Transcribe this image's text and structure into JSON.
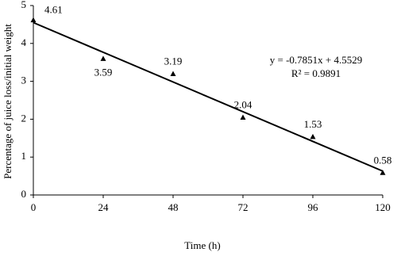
{
  "chart_data": {
    "type": "scatter",
    "x_label": "Time (h)",
    "y_label": "Percentage of juice loss/initial weight",
    "x": [
      0,
      24,
      48,
      72,
      96,
      120
    ],
    "series": [
      {
        "color": "#000000",
        "values": [
          4.61,
          3.59,
          3.19,
          2.04,
          1.53,
          0.58
        ]
      }
    ],
    "trendline": {
      "x": [
        0,
        120
      ],
      "y": [
        4.55,
        0.63
      ],
      "color": "#000000"
    },
    "annotations": [
      "y = -0.7851x + 4.5529",
      "R² = 0.9891"
    ],
    "xlim": [
      0,
      120
    ],
    "xticks": [
      0,
      24,
      48,
      72,
      96,
      120
    ],
    "ylim": [
      0,
      5
    ],
    "yticks": [
      0,
      1,
      2,
      3,
      4,
      5
    ],
    "grid": false
  }
}
